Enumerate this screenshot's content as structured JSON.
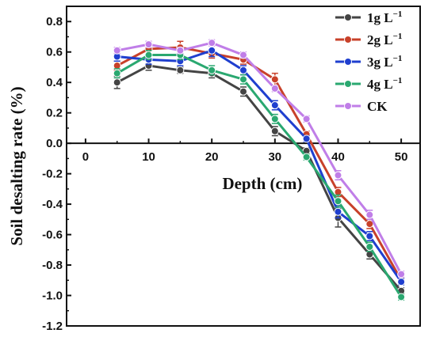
{
  "chart_data": {
    "type": "line",
    "title": "",
    "xlabel": "Depth (cm)",
    "ylabel": "Soil desalting rate (%)",
    "xlim": [
      -3,
      53
    ],
    "ylim": [
      -1.2,
      0.9
    ],
    "xticks": [
      0,
      10,
      20,
      30,
      40,
      50
    ],
    "xtick_labels": [
      "0",
      "10",
      "20",
      "30",
      "40",
      "50"
    ],
    "yticks": [
      0.8,
      0.6,
      0.4,
      0.2,
      0.0,
      -0.2,
      -0.4,
      -0.6,
      -0.8,
      -1.0,
      -1.2
    ],
    "ytick_labels": [
      "0.8",
      "0.6",
      "0.4",
      "0.2",
      "0.0",
      "-0.2",
      "-0.4",
      "-0.6",
      "-0.8",
      "-1.0",
      "-1.2"
    ],
    "legend_position": "top-right",
    "x": [
      5,
      10,
      15,
      20,
      25,
      30,
      35,
      40,
      45,
      50
    ],
    "series": [
      {
        "name": "1g L",
        "name_sup": "−1",
        "color": "#444444",
        "values": [
          0.4,
          0.51,
          0.48,
          0.46,
          0.34,
          0.08,
          -0.05,
          -0.49,
          -0.73,
          -0.97
        ],
        "errors": [
          0.04,
          0.03,
          0.02,
          0.03,
          0.03,
          0.03,
          0.02,
          0.06,
          0.03,
          0.02
        ]
      },
      {
        "name": "2g L",
        "name_sup": "−1",
        "color": "#c8412a",
        "values": [
          0.51,
          0.62,
          0.63,
          0.59,
          0.55,
          0.42,
          0.06,
          -0.32,
          -0.53,
          -0.9
        ],
        "errors": [
          0.03,
          0.03,
          0.04,
          0.03,
          0.03,
          0.04,
          0.02,
          0.03,
          0.03,
          0.02
        ]
      },
      {
        "name": "3g L",
        "name_sup": "−1",
        "color": "#1f3fcf",
        "values": [
          0.57,
          0.55,
          0.54,
          0.61,
          0.48,
          0.25,
          0.03,
          -0.45,
          -0.61,
          -0.91
        ],
        "errors": [
          0.03,
          0.03,
          0.03,
          0.04,
          0.03,
          0.03,
          0.02,
          0.04,
          0.03,
          0.02
        ]
      },
      {
        "name": "4g L",
        "name_sup": "−1",
        "color": "#2aa870",
        "values": [
          0.46,
          0.58,
          0.58,
          0.48,
          0.42,
          0.16,
          -0.09,
          -0.38,
          -0.68,
          -1.01
        ],
        "errors": [
          0.03,
          0.03,
          0.03,
          0.03,
          0.03,
          0.03,
          0.02,
          0.04,
          0.03,
          0.02
        ]
      },
      {
        "name": "CK",
        "name_sup": "",
        "color": "#c07ee8",
        "values": [
          0.61,
          0.65,
          0.61,
          0.66,
          0.58,
          0.36,
          0.16,
          -0.21,
          -0.47,
          -0.86
        ],
        "errors": [
          0.02,
          0.02,
          0.02,
          0.02,
          0.02,
          0.02,
          0.02,
          0.03,
          0.03,
          0.02
        ]
      }
    ]
  }
}
